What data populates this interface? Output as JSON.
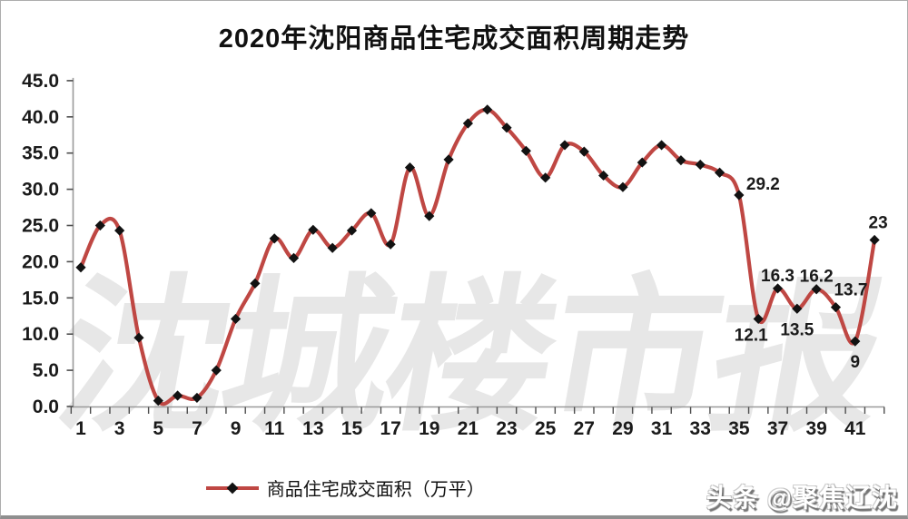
{
  "chart": {
    "title": "2020年沈阳商品住宅成交面积周期走势",
    "legend": "商品住宅成交面积（万平）"
  },
  "watermark": {
    "text": "沈城楼市报"
  },
  "badge": {
    "text": "头条 @聚焦辽沈"
  },
  "colors": {
    "line": "#bf4743",
    "marker": "#121212",
    "axis": "#9a9a9a",
    "tick": "#4d4d4d",
    "text": "#1a1a1a",
    "watermark": "#e7e7e7"
  },
  "chart_data": {
    "type": "line",
    "smooth": true,
    "marker": "diamond",
    "grid": false,
    "legend_position": "bottom",
    "title": "2020年沈阳商品住宅成交面积周期走势",
    "xlabel": "",
    "ylabel": "",
    "ylim": [
      0,
      45
    ],
    "ytick_step": 5,
    "ytick_labels": [
      "0.0",
      "5.0",
      "10.0",
      "15.0",
      "20.0",
      "25.0",
      "30.0",
      "35.0",
      "40.0",
      "45.0"
    ],
    "x_range": [
      1,
      42
    ],
    "xtick_labels": [
      "1",
      "3",
      "5",
      "7",
      "9",
      "11",
      "13",
      "15",
      "17",
      "19",
      "21",
      "23",
      "25",
      "27",
      "29",
      "31",
      "33",
      "35",
      "37",
      "39",
      "41"
    ],
    "series": [
      {
        "name": "商品住宅成交面积（万平）",
        "values": [
          19.2,
          25.0,
          24.3,
          9.5,
          0.8,
          1.5,
          1.2,
          5.0,
          12.1,
          17.0,
          23.2,
          20.5,
          24.4,
          21.9,
          24.3,
          26.7,
          22.4,
          33.0,
          26.3,
          34.1,
          39.1,
          41.0,
          38.5,
          35.3,
          31.6,
          36.1,
          35.2,
          31.9,
          30.3,
          33.7,
          36.1,
          34.0,
          33.4,
          32.3,
          29.2,
          12.1,
          16.3,
          13.5,
          16.2,
          13.7,
          9.0,
          23.0
        ]
      }
    ],
    "labeled_points": [
      {
        "x": 35,
        "label": "29.2",
        "placement": "right"
      },
      {
        "x": 36,
        "label": "12.1",
        "placement": "below-left"
      },
      {
        "x": 37,
        "label": "16.3",
        "placement": "above"
      },
      {
        "x": 38,
        "label": "13.5",
        "placement": "below"
      },
      {
        "x": 39,
        "label": "16.2",
        "placement": "above"
      },
      {
        "x": 40,
        "label": "13.7",
        "placement": "above-right"
      },
      {
        "x": 41,
        "label": "9",
        "placement": "below"
      },
      {
        "x": 42,
        "label": "23",
        "placement": "above-high"
      }
    ]
  }
}
